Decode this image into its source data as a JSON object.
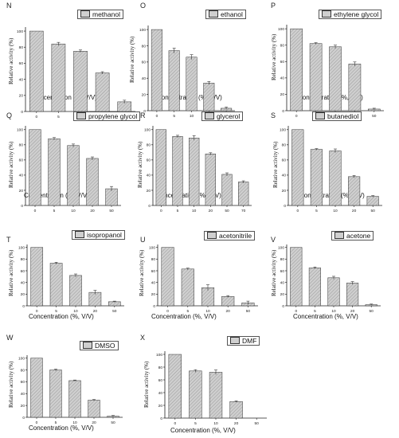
{
  "colors": {
    "bar_fill": "#cfcfcf",
    "bar_hatch": "#9a9a9a",
    "bar_stroke": "#333333",
    "axis": "#222222",
    "error": "#333333"
  },
  "chart_data": [
    {
      "id": "N",
      "type": "bar",
      "legend": "methanol",
      "categories": [
        "0",
        "5",
        "10",
        "20",
        "50"
      ],
      "values": [
        100,
        84,
        75,
        48,
        12
      ],
      "errors": [
        0,
        2,
        1.5,
        1.5,
        2
      ],
      "ylim": [
        0,
        100
      ],
      "yticks": [
        0,
        20,
        40,
        60,
        80,
        100
      ],
      "xlabel": "Concentration (%, V/V)",
      "ylabel": "Relative activity (%)"
    },
    {
      "id": "O",
      "type": "bar",
      "legend": "ethanol",
      "categories": [
        "0",
        "5",
        "10",
        "20",
        "50"
      ],
      "values": [
        100,
        74,
        66,
        34,
        3
      ],
      "errors": [
        0,
        3,
        3,
        2,
        1.5
      ],
      "ylim": [
        0,
        100
      ],
      "yticks": [
        0,
        20,
        40,
        60,
        80,
        100
      ],
      "xlabel": "Concentration (%, V/V)",
      "ylabel": "Relative activity (%)"
    },
    {
      "id": "P",
      "type": "bar",
      "legend": "ethylene glycol",
      "categories": [
        "0",
        "5",
        "10",
        "20",
        "50"
      ],
      "values": [
        100,
        82,
        78,
        57,
        2
      ],
      "errors": [
        0,
        1,
        2,
        2.5,
        1
      ],
      "ylim": [
        0,
        100
      ],
      "yticks": [
        0,
        20,
        40,
        60,
        80,
        100
      ],
      "xlabel": "Concentration (%, V/V)",
      "ylabel": "Relative activity (%)"
    },
    {
      "id": "Q",
      "type": "bar",
      "legend": "propylene glycol",
      "categories": [
        "0",
        "5",
        "10",
        "20",
        "50"
      ],
      "values": [
        100,
        88,
        79,
        62,
        22
      ],
      "errors": [
        0,
        1.5,
        2,
        2,
        3
      ],
      "ylim": [
        0,
        100
      ],
      "yticks": [
        0,
        20,
        40,
        60,
        80,
        100
      ],
      "xlabel": "Concentration (%, V/V)",
      "ylabel": "Relative activity (%)"
    },
    {
      "id": "R",
      "type": "bar",
      "legend": "glycerol",
      "categories": [
        "0",
        "5",
        "10",
        "20",
        "50",
        "70"
      ],
      "values": [
        100,
        91,
        89,
        68,
        41,
        31
      ],
      "errors": [
        0,
        1.5,
        3,
        1.5,
        2,
        1.5
      ],
      "ylim": [
        0,
        100
      ],
      "yticks": [
        0,
        20,
        40,
        60,
        80,
        100
      ],
      "xlabel": "Concentration (%, V/V)",
      "ylabel": "Relative activity (%)"
    },
    {
      "id": "S",
      "type": "bar",
      "legend": "butanediol",
      "categories": [
        "0",
        "5",
        "10",
        "20",
        "50"
      ],
      "values": [
        100,
        74,
        72,
        38,
        12
      ],
      "errors": [
        0,
        1,
        2.5,
        1.5,
        1
      ],
      "ylim": [
        0,
        100
      ],
      "yticks": [
        0,
        20,
        40,
        60,
        80,
        100
      ],
      "xlabel": "Concentration (%, V/V)",
      "ylabel": "Relative activity (%)"
    },
    {
      "id": "T",
      "type": "bar",
      "legend": "isopropanol",
      "categories": [
        "0",
        "5",
        "10",
        "20",
        "50"
      ],
      "values": [
        100,
        73,
        52,
        23,
        7
      ],
      "errors": [
        0,
        1.5,
        2.5,
        3.5,
        1
      ],
      "ylim": [
        0,
        100
      ],
      "yticks": [
        0,
        20,
        40,
        60,
        80,
        100
      ],
      "xlabel": "Concentration (%, V/V)",
      "ylabel": "Relative activity (%)"
    },
    {
      "id": "U",
      "type": "bar",
      "legend": "acetonitrile",
      "categories": [
        "0",
        "5",
        "10",
        "20",
        "50"
      ],
      "values": [
        100,
        63,
        31,
        16,
        5
      ],
      "errors": [
        0,
        1.5,
        5,
        1.5,
        3
      ],
      "ylim": [
        0,
        100
      ],
      "yticks": [
        0,
        20,
        40,
        60,
        80,
        100
      ],
      "xlabel": "Concentration (%, V/V)",
      "ylabel": "Relative activity (%)"
    },
    {
      "id": "V",
      "type": "bar",
      "legend": "acetone",
      "categories": [
        "0",
        "5",
        "10",
        "20",
        "50"
      ],
      "values": [
        100,
        65,
        48,
        39,
        2
      ],
      "errors": [
        0,
        1.5,
        2.5,
        2.5,
        1
      ],
      "ylim": [
        0,
        100
      ],
      "yticks": [
        0,
        20,
        40,
        60,
        80,
        100
      ],
      "xlabel": "Concentration (%, V/V)",
      "ylabel": "Relative activity (%)"
    },
    {
      "id": "W",
      "type": "bar",
      "legend": "DMSO",
      "categories": [
        "0",
        "5",
        "10",
        "20",
        "50"
      ],
      "values": [
        100,
        80,
        62,
        29,
        2
      ],
      "errors": [
        0,
        1.5,
        1,
        1,
        1
      ],
      "ylim": [
        0,
        100
      ],
      "yticks": [
        0,
        20,
        40,
        60,
        80,
        100
      ],
      "xlabel": "Concentration (%, V/V)",
      "ylabel": "Relative activity (%)"
    },
    {
      "id": "X",
      "type": "bar",
      "legend": "DMF",
      "categories": [
        "0",
        "5",
        "10",
        "20",
        "50"
      ],
      "values": [
        100,
        74,
        72,
        26,
        0
      ],
      "errors": [
        0,
        2,
        3.5,
        1,
        0
      ],
      "ylim": [
        0,
        100
      ],
      "yticks": [
        0,
        20,
        40,
        60,
        80,
        100
      ],
      "xlabel": "Concentration (%, V/V)",
      "ylabel": "Relative activity (%)"
    }
  ]
}
